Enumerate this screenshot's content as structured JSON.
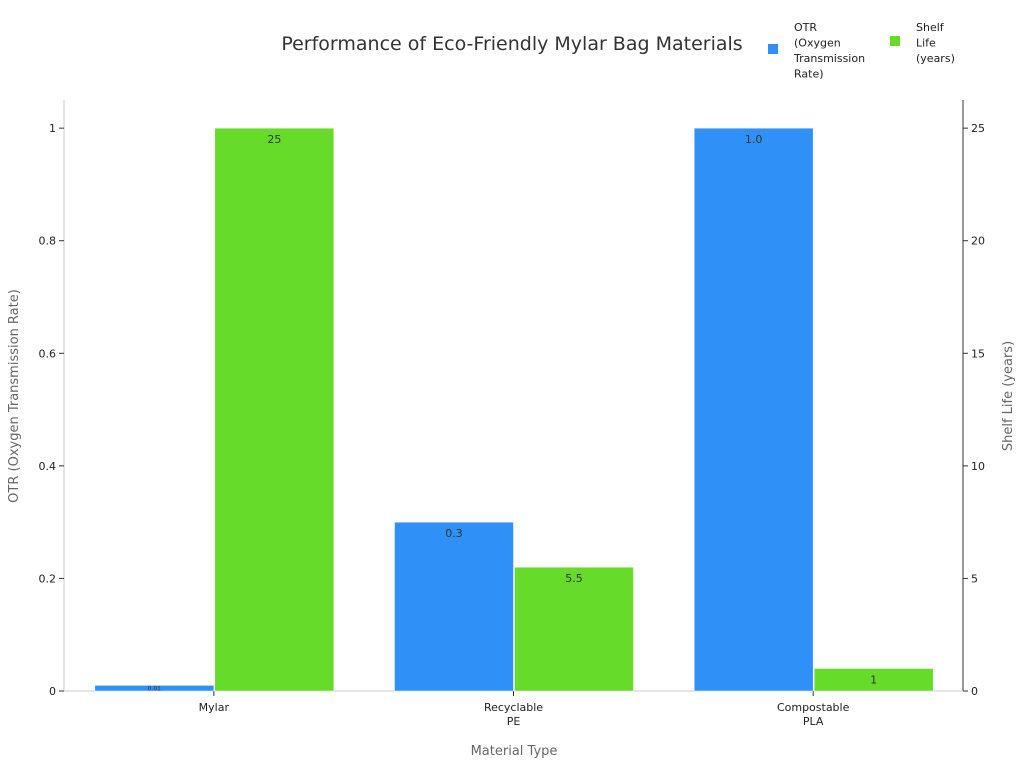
{
  "chart_data": {
    "type": "bar",
    "title": "Performance of Eco-Friendly Mylar Bag Materials",
    "xlabel": "Material Type",
    "ylabel_left": "OTR (Oxygen Transmission Rate)",
    "ylabel_right": "Shelf Life (years)",
    "categories": [
      [
        "Mylar"
      ],
      [
        "Recyclable",
        "PE"
      ],
      [
        "Compostable",
        "PLA"
      ]
    ],
    "ylim_left": [
      0,
      1.05
    ],
    "ylim_right": [
      0,
      26.25
    ],
    "yticks_left": [
      "0",
      "0.2",
      "0.4",
      "0.6",
      "0.8",
      "1"
    ],
    "yticks_left_values": [
      0,
      0.2,
      0.4,
      0.6,
      0.8,
      1
    ],
    "yticks_right": [
      "0",
      "5",
      "10",
      "15",
      "20",
      "25"
    ],
    "yticks_right_values": [
      0,
      5,
      10,
      15,
      20,
      25
    ],
    "grid": false,
    "legend_placement": "top-right",
    "series": [
      {
        "name": [
          "OTR",
          "(Oxygen",
          "Transmission",
          "Rate)"
        ],
        "axis": "left",
        "color": "#2f91f7",
        "values": [
          0.01,
          0.3,
          1.0
        ],
        "labels": [
          "0.01",
          "0.3",
          "1.0"
        ]
      },
      {
        "name": [
          "Shelf",
          "Life",
          "(years)"
        ],
        "axis": "right",
        "color": "#67db29",
        "values": [
          25,
          5.5,
          1
        ],
        "labels": [
          "25",
          "5.5",
          "1"
        ]
      }
    ]
  }
}
